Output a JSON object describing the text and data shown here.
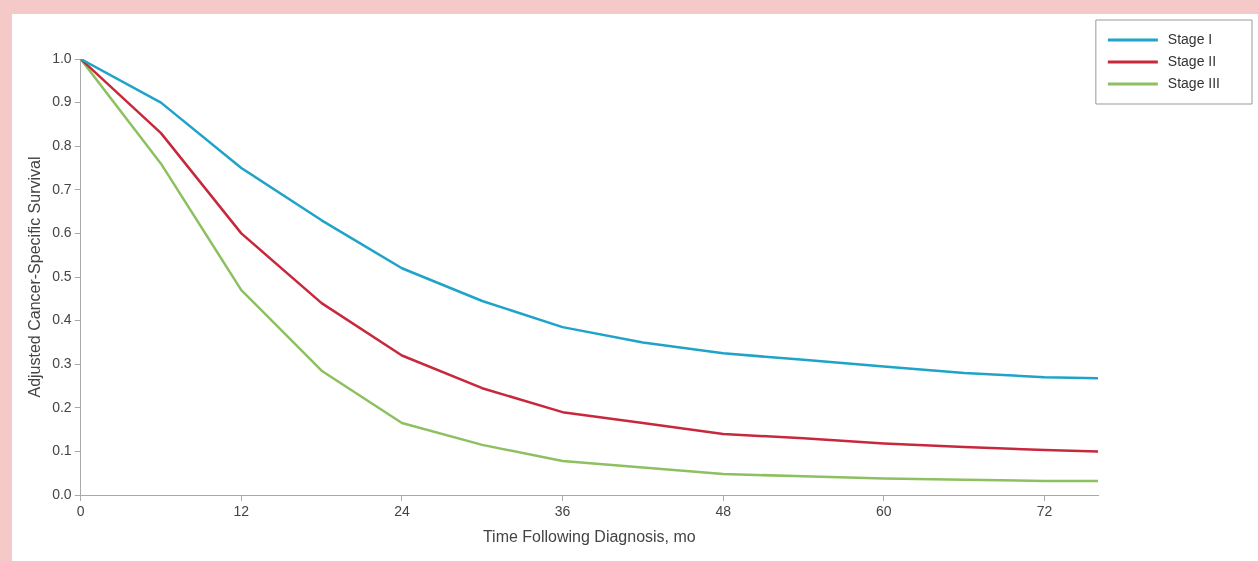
{
  "chart_data": {
    "type": "line",
    "xlabel": "Time Following Diagnosis, mo",
    "ylabel": "Adjusted Cancer-Specific Survival",
    "x": [
      0,
      6,
      12,
      18,
      24,
      30,
      36,
      42,
      48,
      54,
      60,
      66,
      72,
      76
    ],
    "series": [
      {
        "name": "Stage I",
        "color": "#1fa3c8",
        "values": [
          1.0,
          0.9,
          0.75,
          0.63,
          0.52,
          0.445,
          0.385,
          0.35,
          0.325,
          0.31,
          0.295,
          0.28,
          0.27,
          0.268
        ]
      },
      {
        "name": "Stage II",
        "color": "#c8283c",
        "values": [
          1.0,
          0.83,
          0.6,
          0.44,
          0.32,
          0.245,
          0.19,
          0.165,
          0.14,
          0.13,
          0.118,
          0.11,
          0.103,
          0.1
        ]
      },
      {
        "name": "Stage III",
        "color": "#8cc060",
        "values": [
          1.0,
          0.76,
          0.47,
          0.285,
          0.165,
          0.115,
          0.078,
          0.063,
          0.048,
          0.043,
          0.038,
          0.035,
          0.032,
          0.032
        ]
      }
    ],
    "xlim": [
      0,
      76
    ],
    "xticks": [
      0,
      12,
      24,
      36,
      48,
      60,
      72
    ],
    "ylim": [
      0,
      1
    ],
    "yticks": [
      {
        "value": 0,
        "label": "0.0"
      },
      {
        "value": 0.1,
        "label": "0.1"
      },
      {
        "value": 0.2,
        "label": "0.2"
      },
      {
        "value": 0.3,
        "label": "0.3"
      },
      {
        "value": 0.4,
        "label": "0.4"
      },
      {
        "value": 0.5,
        "label": "0.5"
      },
      {
        "value": 0.6,
        "label": "0.6"
      },
      {
        "value": 0.7,
        "label": "0.7"
      },
      {
        "value": 0.8,
        "label": "0.8"
      },
      {
        "value": 0.9,
        "label": "0.9"
      },
      {
        "value": 1,
        "label": "1.0"
      }
    ],
    "grid": false,
    "legend": "top right",
    "marker": "none",
    "line_style": "solid"
  }
}
